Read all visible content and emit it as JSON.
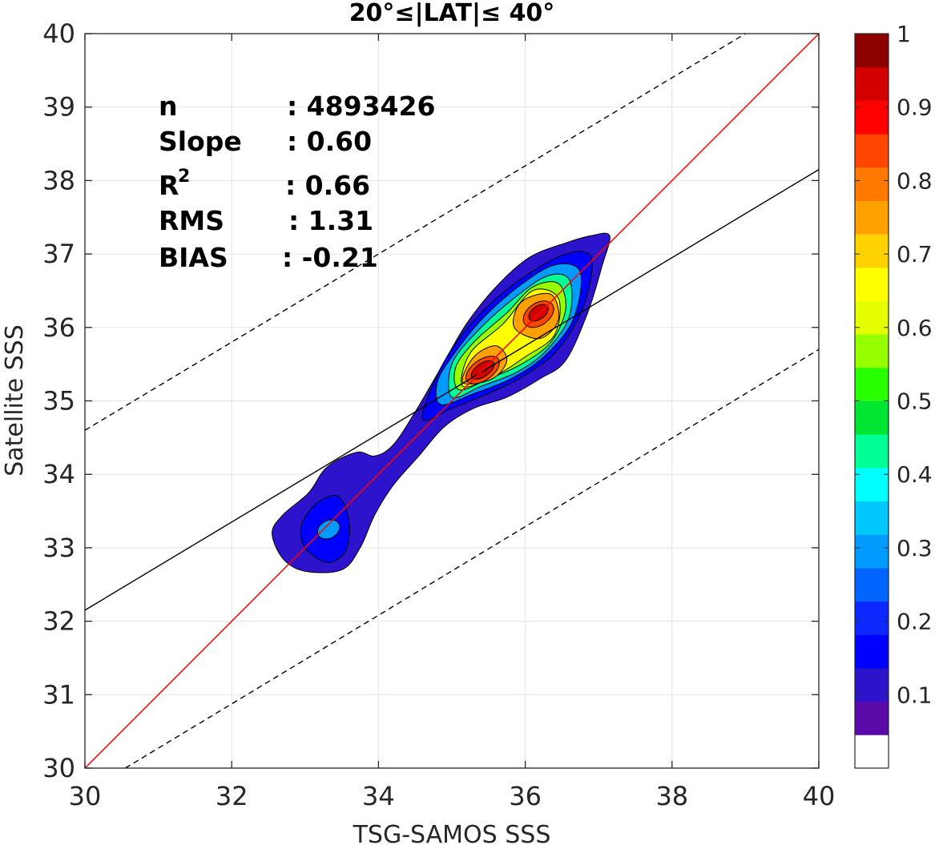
{
  "chart_data": {
    "type": "contour",
    "title": "20°≤|LAT|≤ 40°",
    "xlabel": "TSG-SAMOS SSS",
    "ylabel": "Satellite SSS",
    "xlim": [
      30,
      40
    ],
    "ylim": [
      30,
      40
    ],
    "xticks": [
      30,
      32,
      34,
      36,
      38,
      40
    ],
    "yticks": [
      30,
      31,
      32,
      33,
      34,
      35,
      36,
      37,
      38,
      39,
      40
    ],
    "grid": true,
    "stats": [
      {
        "key": "n",
        "value": ": 4893426"
      },
      {
        "key": "Slope",
        "value": ": 0.60"
      },
      {
        "key": "R",
        "sup": "2",
        "value": ": 0.66"
      },
      {
        "key": "RMS",
        "value": ": 1.31"
      },
      {
        "key": "BIAS",
        "value": ": -0.21"
      }
    ],
    "lines": {
      "one_to_one": {
        "x": [
          30,
          40
        ],
        "y": [
          30,
          40
        ],
        "color": "#ff0000"
      },
      "regression": {
        "x": [
          30,
          40
        ],
        "y": [
          32.15,
          38.15
        ],
        "color": "#000000"
      },
      "upper_bound": {
        "x": [
          30,
          39
        ],
        "y": [
          34.6,
          40
        ],
        "color": "#000000",
        "style": "dashed"
      },
      "lower_bound": {
        "x": [
          30.55,
          40
        ],
        "y": [
          30,
          35.7
        ],
        "color": "#000000",
        "style": "dashed"
      }
    },
    "density_peaks": [
      {
        "x": 35.4,
        "y": 35.4,
        "value": 0.9
      },
      {
        "x": 36.2,
        "y": 36.2,
        "value": 0.95
      },
      {
        "x": 33.3,
        "y": 33.3,
        "value": 0.3
      }
    ],
    "colorbar": {
      "range": [
        0,
        1
      ],
      "ticks": [
        "0.1",
        "0.2",
        "0.3",
        "0.4",
        "0.5",
        "0.6",
        "0.7",
        "0.8",
        "0.9",
        "1"
      ],
      "tick_values": [
        0.1,
        0.2,
        0.3,
        0.4,
        0.5,
        0.6,
        0.7,
        0.8,
        0.9,
        1.0
      ],
      "colors": [
        "#ffffff",
        "#5a0aa8",
        "#2d14cc",
        "#0000ff",
        "#0a28ff",
        "#0064ff",
        "#009bff",
        "#00c8ff",
        "#00ffff",
        "#00ff96",
        "#00e632",
        "#28ff00",
        "#96ff00",
        "#e6ff00",
        "#ffff00",
        "#ffd200",
        "#ffa000",
        "#ff7800",
        "#ff4600",
        "#ff0000",
        "#d20000",
        "#8c0000"
      ]
    }
  }
}
